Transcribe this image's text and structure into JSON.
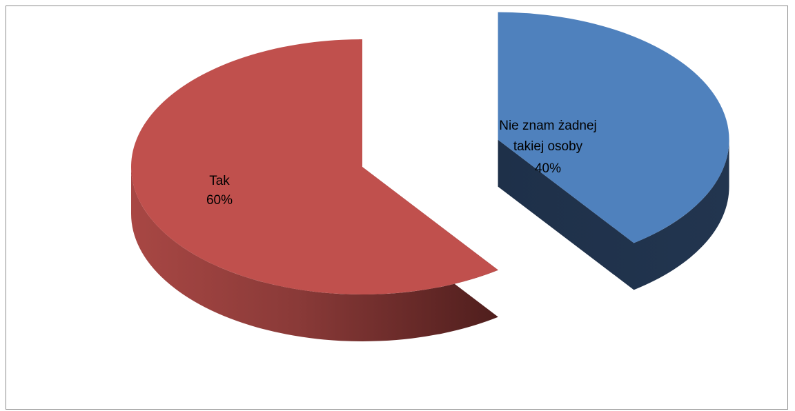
{
  "chart_data": {
    "type": "pie",
    "title": "",
    "slices": [
      {
        "label": "Tak",
        "value": 60,
        "percent_label": "60%",
        "color": "#C0504D"
      },
      {
        "label": "Nie znam żadnej takiej osoby",
        "label_lines": [
          "Nie znam żadnej",
          "takiej osoby"
        ],
        "value": 40,
        "percent_label": "40%",
        "color": "#4F81BD"
      }
    ],
    "legend": "none",
    "style": "3d-exploded"
  }
}
